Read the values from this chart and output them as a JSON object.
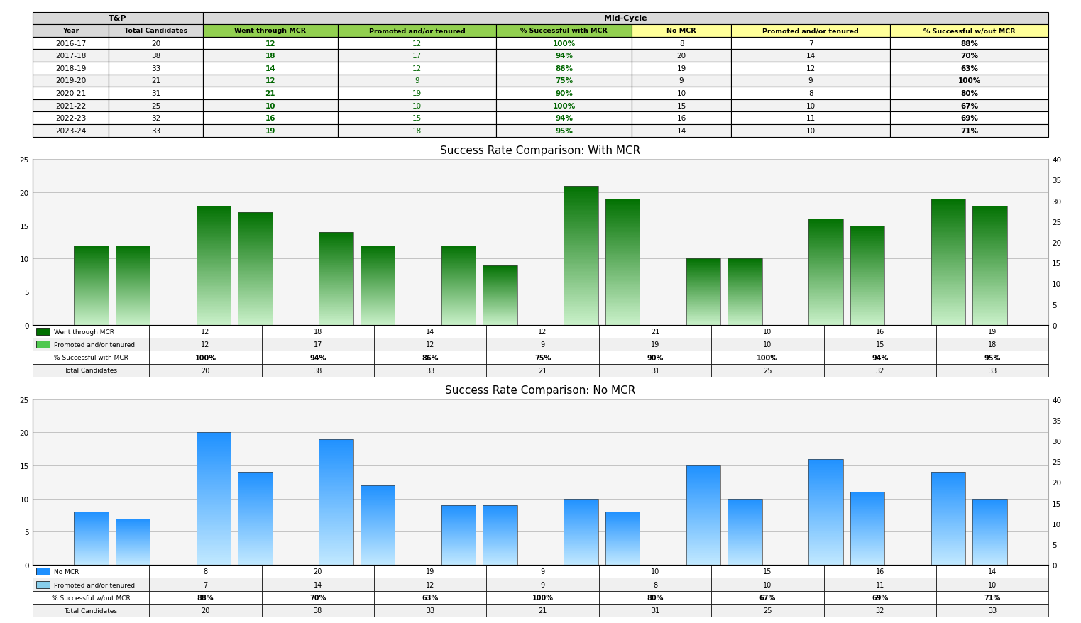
{
  "years": [
    "2016-17",
    "2017-18",
    "2018-19",
    "2019-20",
    "2020-21",
    "2021-22",
    "2022-23",
    "2023-24"
  ],
  "total_candidates": [
    20,
    38,
    33,
    21,
    31,
    25,
    32,
    33
  ],
  "mcr_went_through": [
    12,
    18,
    14,
    12,
    21,
    10,
    16,
    19
  ],
  "mcr_promoted": [
    12,
    17,
    12,
    9,
    19,
    10,
    15,
    18
  ],
  "mcr_pct": [
    "100%",
    "94%",
    "86%",
    "75%",
    "90%",
    "100%",
    "94%",
    "95%"
  ],
  "no_mcr_count": [
    8,
    20,
    19,
    9,
    10,
    15,
    16,
    14
  ],
  "no_mcr_promoted": [
    7,
    14,
    12,
    9,
    8,
    10,
    11,
    10
  ],
  "no_mcr_pct": [
    "88%",
    "70%",
    "63%",
    "100%",
    "80%",
    "67%",
    "69%",
    "71%"
  ],
  "table_header_tp": "T&P",
  "table_header_midcycle": "Mid-Cycle",
  "col_year": "Year",
  "col_total": "Total Candidates",
  "col_went_mcr": "Went through MCR",
  "col_promoted_mcr": "Promoted and/or tenured",
  "col_pct_mcr": "% Successful with MCR",
  "col_no_mcr": "No MCR",
  "col_promoted_no_mcr": "Promoted and/or tenured",
  "col_pct_no_mcr": "% Successful w/out MCR",
  "chart1_title": "Success Rate Comparison: With MCR",
  "chart2_title": "Success Rate Comparison: No MCR",
  "row_labels_chart1": [
    "Went through MCR",
    "Promoted and/or tenured",
    "% Successful with MCR",
    "Total Candidates"
  ],
  "row_labels_chart2": [
    "No MCR",
    "Promoted and/or tenured",
    "% Successful w/out MCR",
    "Total Candidates"
  ],
  "ylim_left": [
    0,
    25
  ],
  "ylim_right": [
    0,
    40
  ],
  "yticks_left": [
    0,
    5,
    10,
    15,
    20,
    25
  ],
  "yticks_right": [
    0,
    5,
    10,
    15,
    20,
    25,
    30,
    35,
    40
  ],
  "green_dark": "#007000",
  "green_light": "#C8F0C8",
  "blue_dark": "#1E90FF",
  "blue_light": "#C0E8FF",
  "subhdr_green": "#92D050",
  "subhdr_yellow": "#FFFF99",
  "subhdr_gray": "#D9D9D9",
  "chart_bg": "#F5F5F5",
  "chart_border": "#AAAAAA",
  "chart_title_fontsize": 11,
  "table_data_fontsize": 7.5,
  "table_header_fontsize": 8.0,
  "col_widths_raw": [
    0.065,
    0.08,
    0.115,
    0.135,
    0.115,
    0.085,
    0.135,
    0.135
  ]
}
